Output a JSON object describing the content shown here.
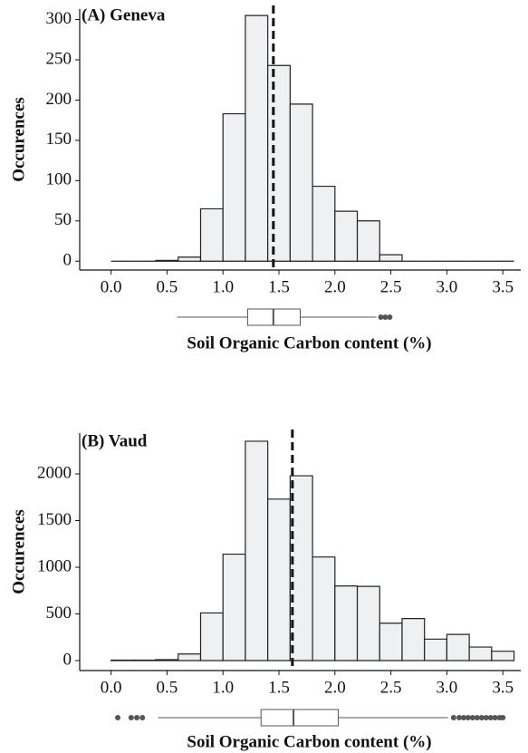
{
  "chart_data": [
    {
      "type": "histogram",
      "title": "(A) Geneva",
      "x_label": "Soil Organic Carbon content (%)",
      "y_label": "Occurences",
      "bins": [
        0.0,
        0.2,
        0.4,
        0.6,
        0.8,
        1.0,
        1.2,
        1.4,
        1.6,
        1.8,
        2.0,
        2.2,
        2.4,
        2.6,
        2.8,
        3.0,
        3.2,
        3.4,
        3.6
      ],
      "counts": [
        0,
        0,
        1,
        5,
        65,
        183,
        305,
        243,
        195,
        93,
        62,
        50,
        8,
        0,
        0,
        0,
        0,
        0
      ],
      "color": "#eff0f2",
      "edge_color": "#222222",
      "mean_line": 1.45,
      "boxplot": {
        "whisker_low": 0.59,
        "q1": 1.22,
        "median": 1.45,
        "q3": 1.69,
        "whisker_high": 2.37,
        "outliers": [
          2.41,
          2.45,
          2.49
        ]
      },
      "xlim": [
        -0.28,
        3.66
      ],
      "ylim": [
        -11,
        313
      ],
      "xticks": [
        {
          "value": 0,
          "label": "0.0"
        },
        0.5,
        {
          "value": 1,
          "label": "1.0"
        },
        1.5,
        {
          "value": 2,
          "label": "2.0"
        },
        2.5,
        {
          "value": 3,
          "label": "3.0"
        },
        3.5
      ],
      "yticks": [
        0,
        50,
        100,
        150,
        200,
        250,
        300
      ]
    },
    {
      "type": "histogram",
      "title": "(B) Vaud",
      "x_label": "Soil Organic Carbon content (%)",
      "y_label": "Occurences",
      "bins": [
        0.0,
        0.2,
        0.4,
        0.6,
        0.8,
        1.0,
        1.2,
        1.4,
        1.6,
        1.8,
        2.0,
        2.2,
        2.4,
        2.6,
        2.8,
        3.0,
        3.2,
        3.4,
        3.6
      ],
      "counts": [
        5,
        5,
        10,
        70,
        510,
        1140,
        2350,
        1730,
        1980,
        1110,
        800,
        795,
        400,
        450,
        230,
        280,
        145,
        100
      ],
      "color": "#eff0f2",
      "edge_color": "#222222",
      "mean_line": 1.62,
      "boxplot": {
        "whisker_low": 0.42,
        "q1": 1.34,
        "median": 1.63,
        "q3": 2.03,
        "whisker_high": 3.01,
        "outliers": [
          0.06,
          0.18,
          0.23,
          0.28,
          3.06,
          3.11,
          3.15,
          3.19,
          3.23,
          3.27,
          3.31,
          3.35,
          3.39,
          3.43,
          3.47,
          3.5
        ]
      },
      "xlim": [
        -0.28,
        3.66
      ],
      "ylim": [
        -107,
        2437
      ],
      "xticks": [
        {
          "value": 0,
          "label": "0.0"
        },
        0.5,
        {
          "value": 1,
          "label": "1.0"
        },
        1.5,
        {
          "value": 2,
          "label": "2.0"
        },
        2.5,
        {
          "value": 3,
          "label": "3.0"
        },
        3.5
      ],
      "yticks": [
        0,
        500,
        1000,
        1500,
        2000
      ]
    }
  ]
}
